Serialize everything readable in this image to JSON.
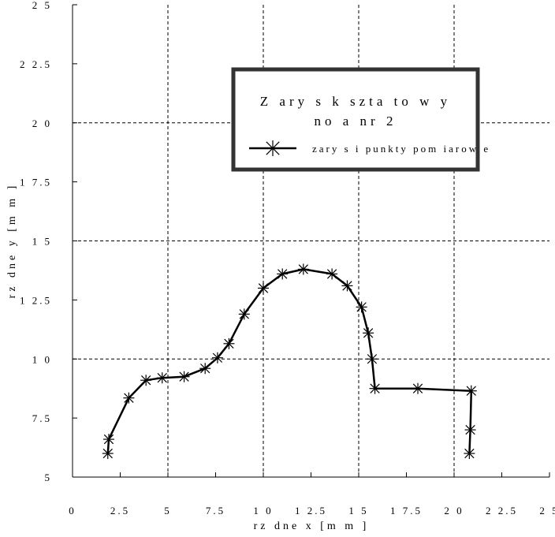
{
  "chart_data": {
    "type": "line",
    "title": "",
    "xlabel": "rz dne x [m m ]",
    "ylabel": "rz dne y [m m ]",
    "xlim": [
      0,
      25
    ],
    "ylim": [
      5,
      25
    ],
    "xticks": [
      0,
      2.5,
      5,
      7.5,
      10,
      12.5,
      15,
      17.5,
      20,
      22.5,
      25
    ],
    "yticks": [
      5,
      7.5,
      10,
      12.5,
      15,
      17.5,
      20,
      22.5,
      25
    ],
    "xtick_labels": [
      "0",
      "2.5",
      "5",
      "7.5",
      "1 0",
      "1 2.5",
      "1 5",
      "1 7.5",
      "2 0",
      "2 2.5",
      "2 5"
    ],
    "ytick_labels": [
      "5",
      "7.5",
      "1 0",
      "1 2.5",
      "1 5",
      "1 7.5",
      "2 0",
      "2 2.5",
      "2 5"
    ],
    "grid": true,
    "grid_x": [
      5,
      10,
      15,
      20
    ],
    "grid_y": [
      10,
      15,
      20
    ],
    "legend": {
      "title_lines": [
        "Z ary s  k szta to w y",
        "no  a nr 2"
      ],
      "entry": "zary s i punkty pom iarow e",
      "placement": "top-right"
    },
    "series": [
      {
        "name": "zary s i punkty pom iarow e",
        "marker": "asterisk",
        "color": "#000000",
        "x": [
          1.85,
          1.9,
          2.95,
          3.85,
          4.7,
          5.85,
          6.95,
          7.6,
          8.2,
          9.0,
          10.0,
          11.0,
          12.1,
          13.6,
          14.4,
          15.15,
          15.5,
          15.7,
          15.85,
          18.1,
          20.9,
          20.85,
          20.8
        ],
        "y": [
          6.0,
          6.6,
          8.35,
          9.1,
          9.2,
          9.25,
          9.6,
          10.05,
          10.65,
          11.9,
          13.0,
          13.6,
          13.8,
          13.6,
          13.1,
          12.2,
          11.1,
          10.0,
          8.75,
          8.75,
          8.65,
          7.0,
          6.0
        ]
      }
    ]
  }
}
